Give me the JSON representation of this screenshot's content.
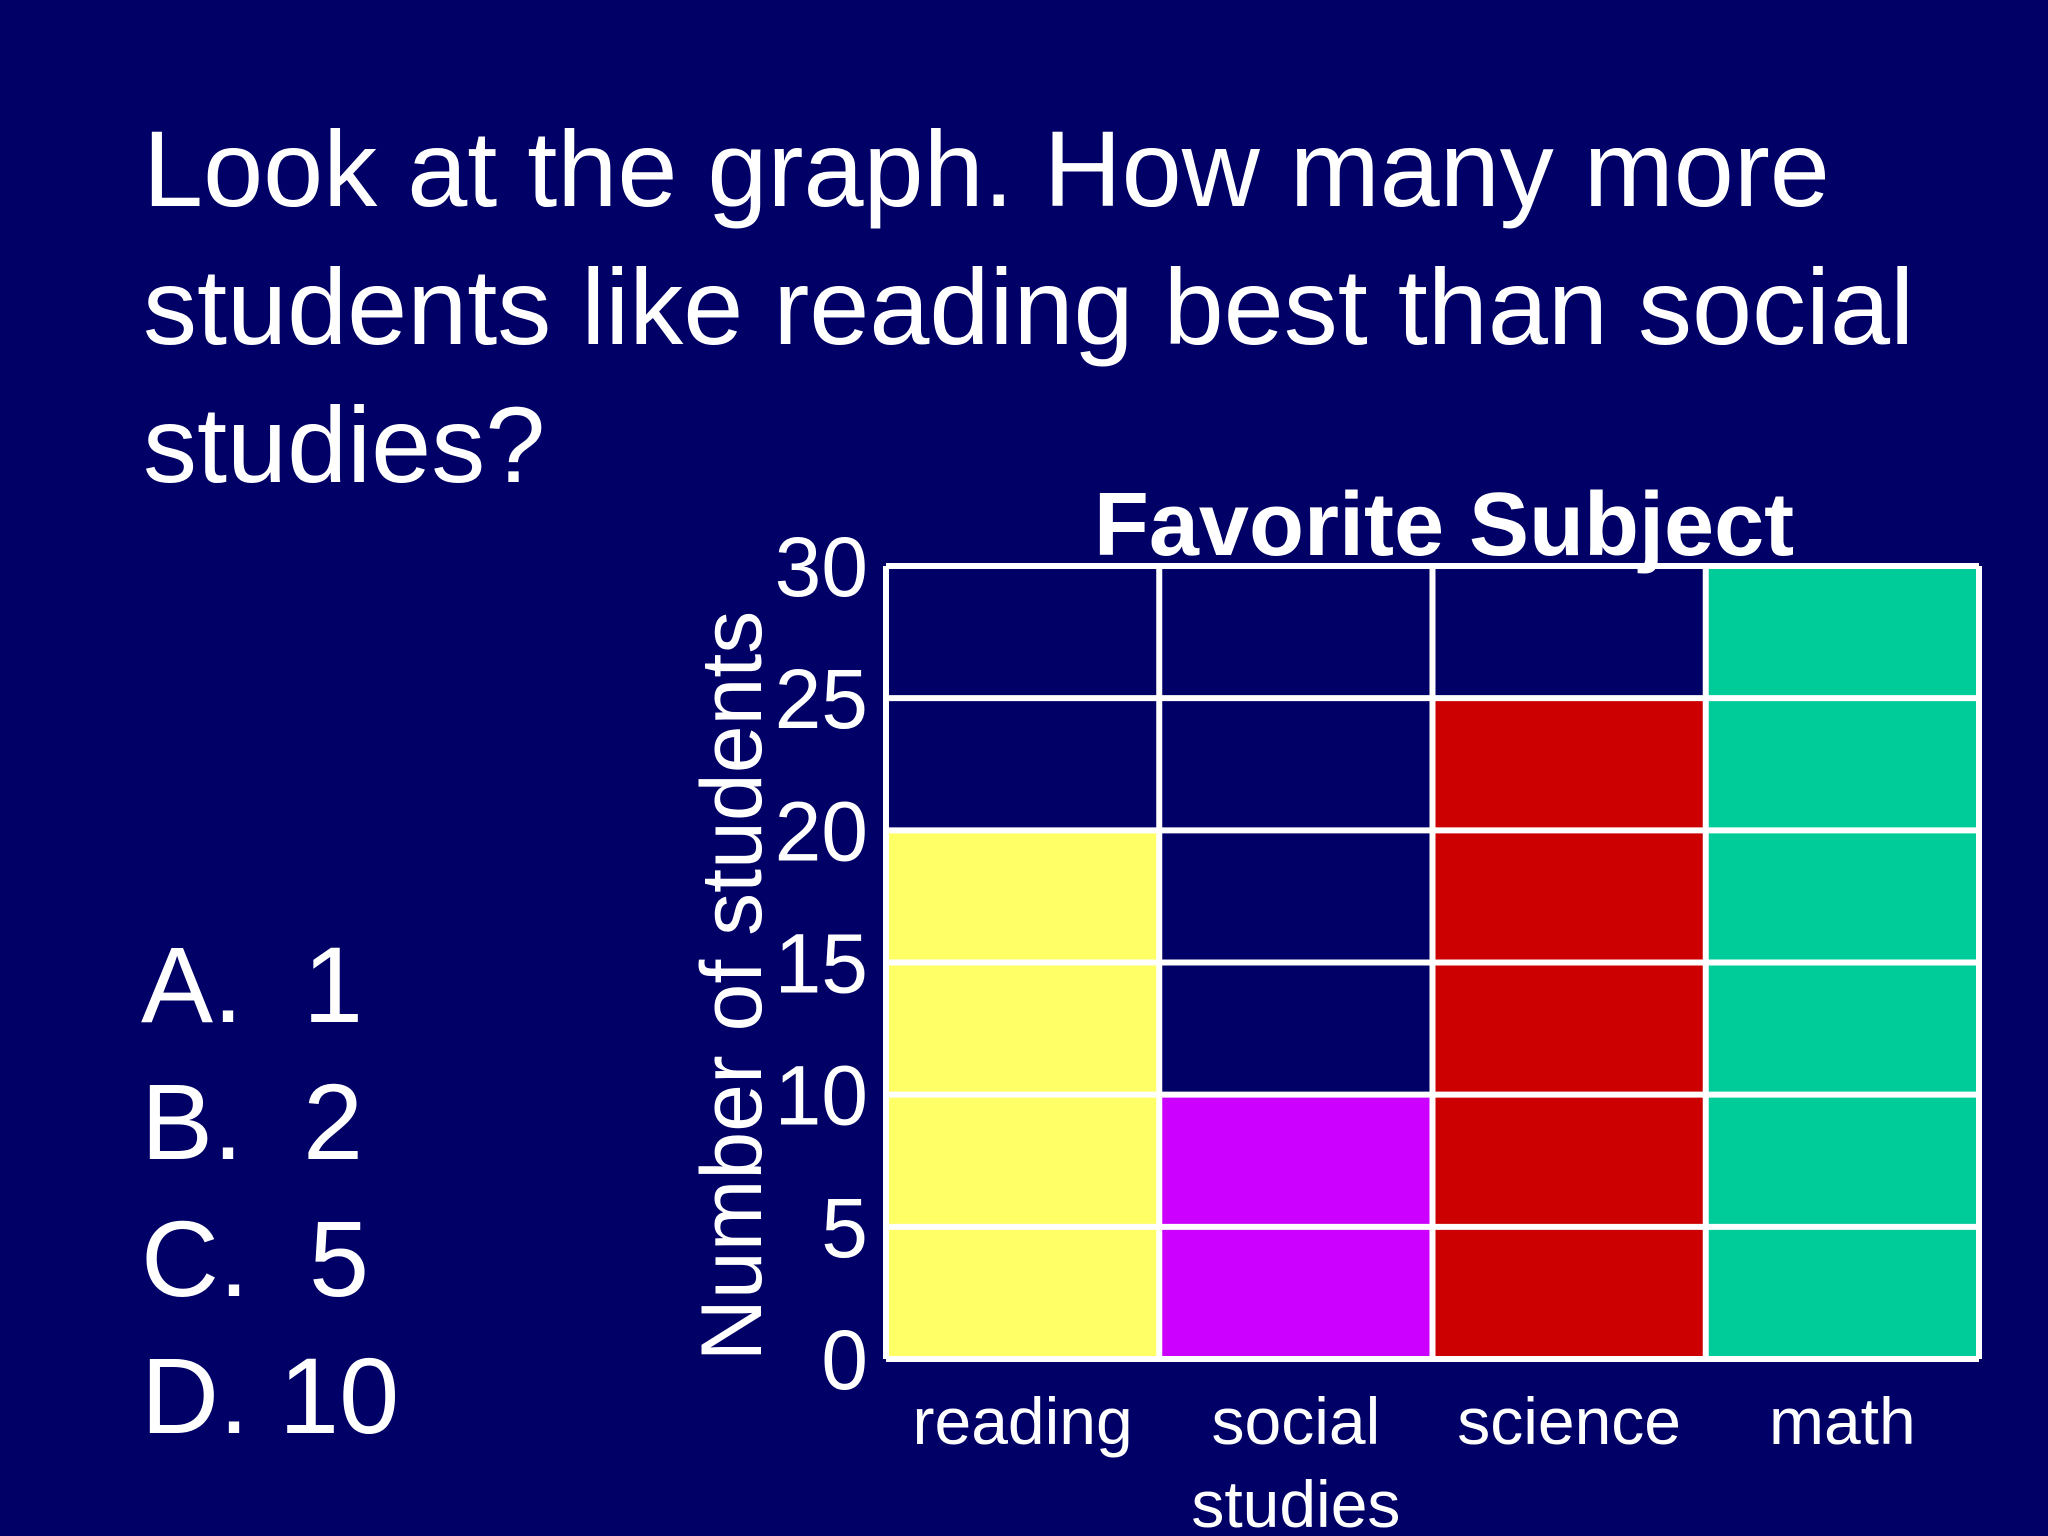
{
  "question": {
    "lines": [
      "Look at the graph.  How many more",
      "students like reading best than social",
      "studies?"
    ]
  },
  "answers": [
    "A.  1",
    "B.  2",
    "C.  5",
    "D. 10"
  ],
  "colors": {
    "background": "#000066",
    "grid": "#ffffff",
    "reading": "#ffff66",
    "social_studies": "#cc00ff",
    "science": "#cc0000",
    "math": "#00cc99"
  },
  "chart_data": {
    "type": "bar",
    "title": "Favorite Subject",
    "ylabel": "Number of students",
    "xlabel": "",
    "categories": [
      [
        "reading"
      ],
      [
        "social",
        "studies"
      ],
      [
        "science"
      ],
      [
        "math"
      ]
    ],
    "values": [
      20,
      10,
      25,
      30
    ],
    "ylim": [
      0,
      30
    ],
    "yticks": [
      0,
      5,
      10,
      15,
      20,
      25,
      30
    ],
    "grid": true
  }
}
